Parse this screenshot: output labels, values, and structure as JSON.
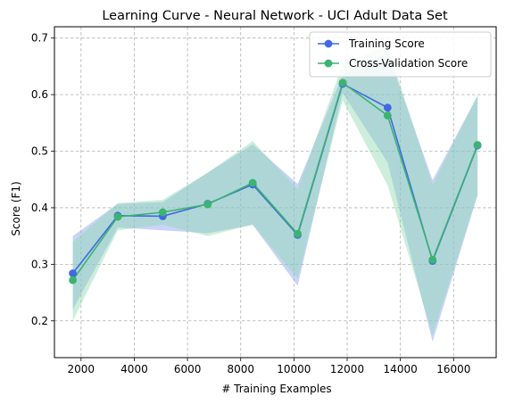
{
  "chart_data": {
    "type": "line",
    "title": "Learning Curve - Neural Network - UCI Adult Data Set",
    "xlabel": "# Training Examples",
    "ylabel": "Score (F1)",
    "xlim": [
      1000,
      17600
    ],
    "ylim": [
      0.135,
      0.72
    ],
    "xticks": [
      2000,
      4000,
      6000,
      8000,
      10000,
      12000,
      14000,
      16000
    ],
    "yticks": [
      0.2,
      0.3,
      0.4,
      0.5,
      0.6,
      0.7
    ],
    "grid": true,
    "legend_position": "upper right",
    "x": [
      1690,
      3380,
      5070,
      6760,
      8450,
      10140,
      11830,
      13520,
      15210,
      16900
    ],
    "series": [
      {
        "name": "Training Score",
        "color": "#4169e1",
        "band_color": "#87a0f0",
        "values": [
          0.284,
          0.386,
          0.385,
          0.407,
          0.441,
          0.352,
          0.619,
          0.577,
          0.306,
          0.51
        ],
        "band_lower": [
          0.22,
          0.365,
          0.36,
          0.355,
          0.37,
          0.262,
          0.603,
          0.48,
          0.163,
          0.422
        ],
        "band_upper": [
          0.35,
          0.407,
          0.41,
          0.462,
          0.512,
          0.442,
          0.635,
          0.674,
          0.449,
          0.598
        ]
      },
      {
        "name": "Cross-Validation Score",
        "color": "#3cb371",
        "band_color": "#8fd9b0",
        "values": [
          0.272,
          0.384,
          0.392,
          0.406,
          0.444,
          0.354,
          0.621,
          0.563,
          0.308,
          0.511
        ],
        "band_lower": [
          0.2,
          0.36,
          0.37,
          0.35,
          0.37,
          0.275,
          0.59,
          0.44,
          0.175,
          0.423
        ],
        "band_upper": [
          0.34,
          0.408,
          0.414,
          0.462,
          0.518,
          0.433,
          0.653,
          0.686,
          0.441,
          0.599
        ]
      }
    ]
  }
}
